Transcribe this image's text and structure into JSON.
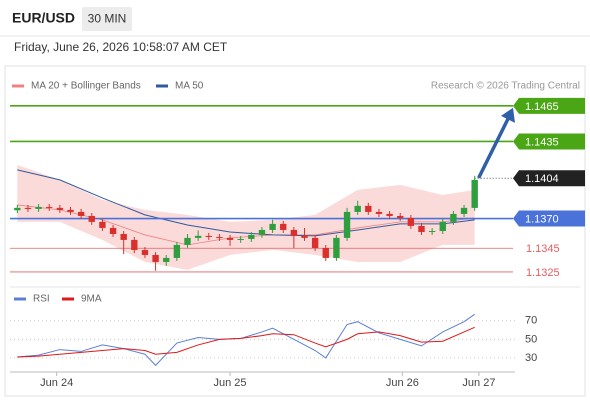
{
  "header": {
    "symbol": "EUR/USD",
    "interval": "30 MIN",
    "datetime": "Friday, June 26, 2026 10:58:07 AM CET",
    "credit": "Research © 2026 Trading Central"
  },
  "chart_data": [
    {
      "type": "candlestick",
      "xlim": [
        0,
        44
      ],
      "ylim": [
        1.1314,
        1.1491
      ],
      "up_color": "#2e9e3e",
      "down_color": "#d9302c",
      "open": [
        1.1377,
        1.1379,
        1.13781,
        1.13798,
        1.1379,
        1.13773,
        1.13756,
        1.13722,
        1.13672,
        1.13621,
        1.1357,
        1.1352,
        1.13435,
        1.13393,
        1.13334,
        1.13368,
        1.13478,
        1.13537,
        1.13554,
        1.13545,
        1.13537,
        1.1352,
        1.13528,
        1.13562,
        1.13604,
        1.13655,
        1.13604,
        1.13554,
        1.13537,
        1.13452,
        1.13368,
        1.13537,
        1.13756,
        1.13807,
        1.13756,
        1.13739,
        1.13722,
        1.13705,
        1.13638,
        1.13587,
        1.13595,
        1.13672,
        1.13739,
        1.1379
      ],
      "high": [
        1.13815,
        1.13815,
        1.13823,
        1.13823,
        1.13815,
        1.13798,
        1.13781,
        1.13747,
        1.13697,
        1.13646,
        1.13595,
        1.13545,
        1.1346,
        1.13418,
        1.13393,
        1.13503,
        1.1357,
        1.136,
        1.13579,
        1.1357,
        1.13562,
        1.13553,
        1.13587,
        1.13629,
        1.1369,
        1.1368,
        1.13629,
        1.1362,
        1.13562,
        1.13477,
        1.13562,
        1.1379,
        1.1385,
        1.13832,
        1.13781,
        1.13764,
        1.13747,
        1.1373,
        1.13663,
        1.1362,
        1.13697,
        1.13764,
        1.13815,
        1.1406
      ],
      "low": [
        1.13745,
        1.13756,
        1.13756,
        1.13765,
        1.13748,
        1.13731,
        1.13697,
        1.13647,
        1.13596,
        1.13545,
        1.134,
        1.1341,
        1.13368,
        1.1326,
        1.133,
        1.13343,
        1.13453,
        1.13512,
        1.1352,
        1.13512,
        1.1347,
        1.13495,
        1.13503,
        1.13537,
        1.13579,
        1.13579,
        1.1345,
        1.13512,
        1.13427,
        1.13343,
        1.13343,
        1.13512,
        1.13731,
        1.13731,
        1.13714,
        1.13697,
        1.1368,
        1.13613,
        1.13562,
        1.13562,
        1.1357,
        1.13647,
        1.13714,
        1.13765
      ],
      "close": [
        1.1379,
        1.13781,
        1.13798,
        1.1379,
        1.13773,
        1.13756,
        1.13722,
        1.13672,
        1.13621,
        1.1357,
        1.1352,
        1.13435,
        1.13393,
        1.13334,
        1.13368,
        1.13478,
        1.13537,
        1.13554,
        1.13545,
        1.13537,
        1.1352,
        1.13528,
        1.13562,
        1.13604,
        1.13655,
        1.13604,
        1.13554,
        1.13537,
        1.13452,
        1.13368,
        1.13537,
        1.13756,
        1.13807,
        1.13756,
        1.13739,
        1.13722,
        1.13705,
        1.13638,
        1.13587,
        1.13595,
        1.13672,
        1.13739,
        1.1379,
        1.14026
      ],
      "series": [
        {
          "name": "MA 20 + Bollinger Bands",
          "color": "#f08080",
          "band_color": "#fbdada",
          "x": [
            0.5,
            4.5,
            8.5,
            12.5,
            16.5,
            20.5,
            24.5,
            28.5,
            32.5,
            36.5,
            40.5,
            43.5
          ],
          "values": [
            1.13815,
            1.13773,
            1.13689,
            1.13562,
            1.13478,
            1.13537,
            1.13562,
            1.13562,
            1.13621,
            1.13672,
            1.13672,
            1.13705
          ],
          "upper": [
            1.14152,
            1.14026,
            1.13857,
            1.13773,
            1.13731,
            1.13672,
            1.13689,
            1.13731,
            1.13942,
            1.13984,
            1.13899,
            1.13942
          ],
          "lower": [
            1.13672,
            1.13672,
            1.1352,
            1.13334,
            1.13267,
            1.13393,
            1.13436,
            1.13393,
            1.13334,
            1.13334,
            1.13478,
            1.13478
          ]
        },
        {
          "name": "MA 50",
          "color": "#2f5b9b",
          "x": [
            0.5,
            4.5,
            8.5,
            12.5,
            16.5,
            20.5,
            24.5,
            28.5,
            32.5,
            36.5,
            40.5,
            43.5
          ],
          "values": [
            1.1411,
            1.14026,
            1.13874,
            1.13731,
            1.13646,
            1.13587,
            1.13562,
            1.13554,
            1.13604,
            1.13655,
            1.13655,
            1.13689
          ]
        }
      ],
      "levels": [
        {
          "value": 1.1465,
          "color": "#4ba616",
          "style": "target"
        },
        {
          "value": 1.1435,
          "color": "#4ba616",
          "style": "target"
        },
        {
          "value": 1.1404,
          "color": "#222222",
          "style": "last"
        },
        {
          "value": 1.137,
          "label": "1.1370",
          "color": "#4a72d8",
          "style": "pivot"
        },
        {
          "value": 1.1345,
          "color": "#e06060",
          "style": "support"
        },
        {
          "value": 1.1325,
          "color": "#e06060",
          "style": "support"
        }
      ]
    },
    {
      "type": "line",
      "xlim": [
        0,
        44
      ],
      "ylim": [
        17,
        87
      ],
      "grid": true,
      "yticks": [
        30,
        50,
        70
      ],
      "xticks": [
        {
          "value": 4.2,
          "label": "Jun 24"
        },
        {
          "value": 20.5,
          "label": "Jun 25"
        },
        {
          "value": 36.7,
          "label": "Jun 26"
        },
        {
          "value": 43.9,
          "label": "Jun 27"
        }
      ],
      "x": [
        0.5,
        2.5,
        4.5,
        6.5,
        8.5,
        10.5,
        12.5,
        13.5,
        15.5,
        17.5,
        19.5,
        21.5,
        23.5,
        24.5,
        26.5,
        28.5,
        29.5,
        31.5,
        32.5,
        34.5,
        36.5,
        38.5,
        40.5,
        42.5,
        43.5
      ],
      "series": [
        {
          "name": "RSI",
          "color": "#5b7fd6",
          "values": [
            31,
            33,
            39,
            37,
            44,
            40,
            34,
            22,
            46,
            52,
            50,
            51,
            58,
            62,
            50,
            38,
            30,
            66,
            69,
            57,
            50,
            43,
            58,
            69,
            77
          ]
        },
        {
          "name": "9MA",
          "color": "#e01818",
          "values": [
            31,
            32,
            34,
            36,
            38,
            40,
            38,
            34,
            36,
            44,
            50,
            51,
            54,
            56,
            55,
            46,
            42,
            50,
            56,
            58,
            54,
            47,
            48,
            58,
            63
          ]
        }
      ]
    }
  ]
}
